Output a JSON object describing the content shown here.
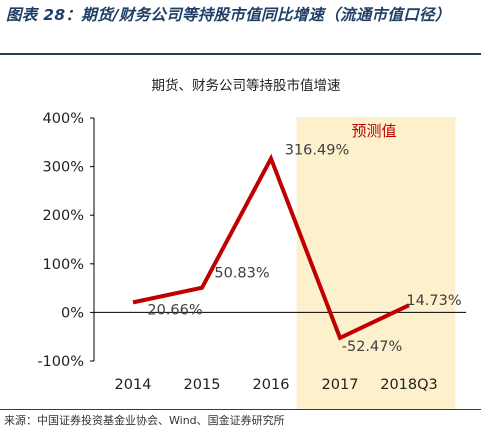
{
  "figure_title": "图表 28：期货/财务公司等持股市值同比增速（流通市值口径）",
  "source": "来源：中国证券投资基金业协会、Wind、国金证券研究所",
  "colors": {
    "line": "#c00000",
    "forecast_shade": "#fdf0cc",
    "forecast_label": "#c00000",
    "title_blue": "#1f3f66"
  },
  "chart_data": {
    "type": "line",
    "title": "期货、财务公司等持股市值增速",
    "categories": [
      "2014",
      "2015",
      "2016",
      "2017",
      "2018Q3"
    ],
    "series": [
      {
        "values": [
          20.66,
          50.83,
          316.49,
          -52.47,
          14.73
        ]
      }
    ],
    "data_labels": [
      "20.66%",
      "50.83%",
      "316.49%",
      "-52.47%",
      "14.73%"
    ],
    "y_ticks": [
      "400%",
      "300%",
      "200%",
      "100%",
      "0%",
      "-100%"
    ],
    "y_tick_values": [
      400,
      300,
      200,
      100,
      0,
      -100
    ],
    "ylim": [
      -100,
      400
    ],
    "forecast_region": {
      "from": "2017",
      "to": "2018Q3",
      "label": "预测值"
    },
    "legend": "none",
    "grid": false
  }
}
